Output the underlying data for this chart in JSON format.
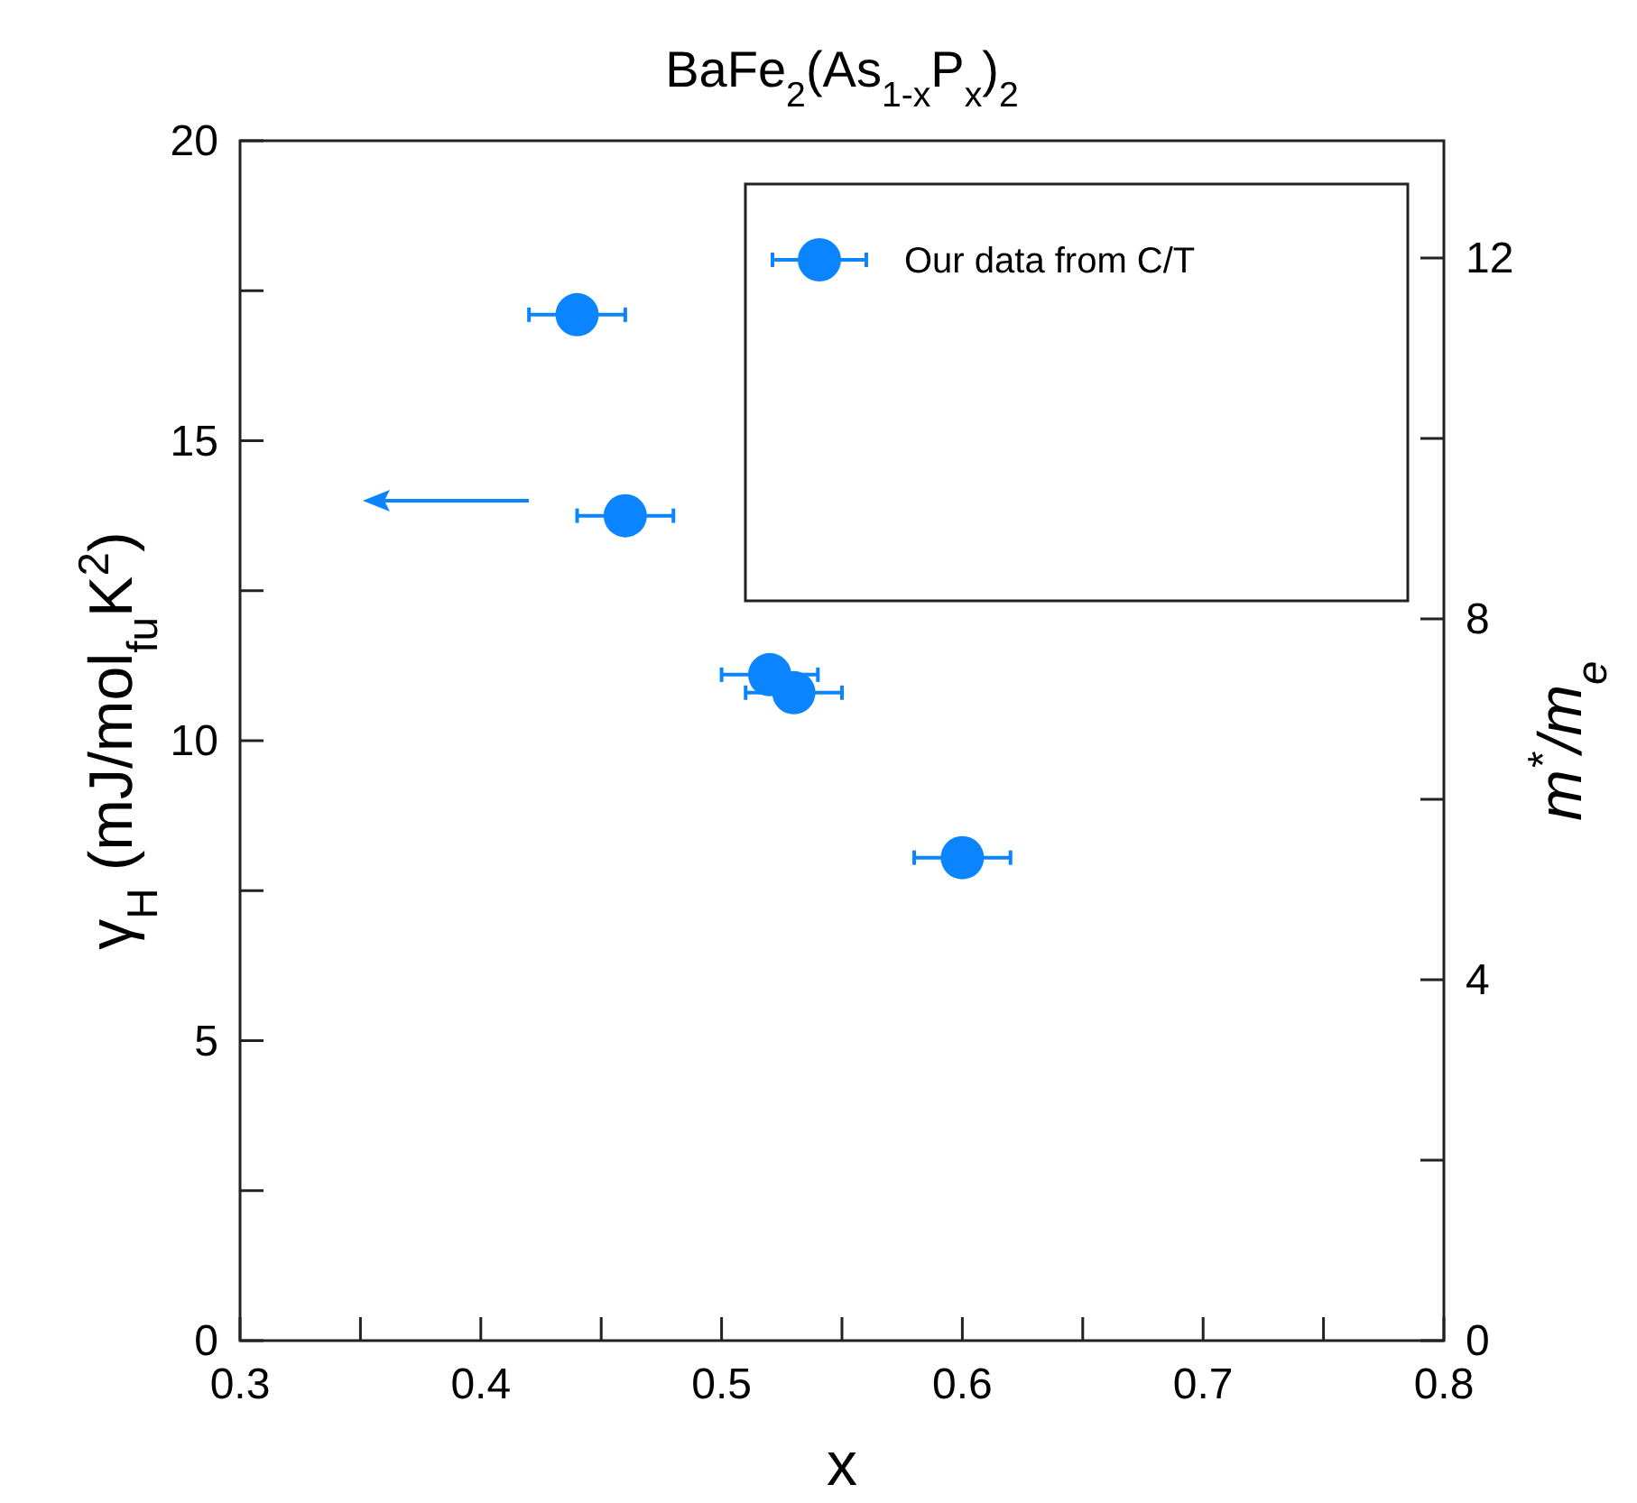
{
  "chart_data": {
    "type": "scatter",
    "title": "BaFe$_{2}$(As$_{1-x}$P$_{x}$)$_{2}$",
    "xlabel": "x",
    "ylabel": "γ$_{H}$ (mJ/mol$_{fu}$K$^{2}$)",
    "y2label": "m$^{*}$/m$_{e}$",
    "xlim": [
      0.3,
      0.8
    ],
    "xticks": [
      0.3,
      {
        "value": 0.35,
        "label": null
      },
      0.4,
      {
        "value": 0.45,
        "label": null
      },
      0.5,
      {
        "value": 0.55,
        "label": null
      },
      0.6,
      {
        "value": 0.65,
        "label": null
      },
      0.7,
      {
        "value": 0.75,
        "label": null
      },
      0.8
    ],
    "ylim": [
      0,
      20
    ],
    "yticks": [
      0,
      {
        "value": 2.5,
        "label": null
      },
      5,
      {
        "value": 7.5,
        "label": null
      },
      10,
      {
        "value": 12.5,
        "label": null
      },
      15,
      {
        "value": 17.5,
        "label": null
      },
      20
    ],
    "y2lim": [
      0,
      13.3
    ],
    "y2ticks": [
      0,
      {
        "value": 2,
        "label": null
      },
      4,
      {
        "value": 6,
        "label": null
      },
      8,
      {
        "value": 10,
        "label": null
      },
      12
    ],
    "legend": "top right",
    "marker": "circle",
    "grid": false,
    "series": [
      {
        "name": "Our data from C/T",
        "color": "#0a84ff",
        "x": [
          0.44,
          0.46,
          0.52,
          0.53,
          0.6
        ],
        "values": [
          17.1,
          13.75,
          11.1,
          10.8,
          8.05
        ],
        "xerrors": [
          0.02,
          0.02,
          0.02,
          0.02,
          0.02
        ]
      }
    ]
  }
}
